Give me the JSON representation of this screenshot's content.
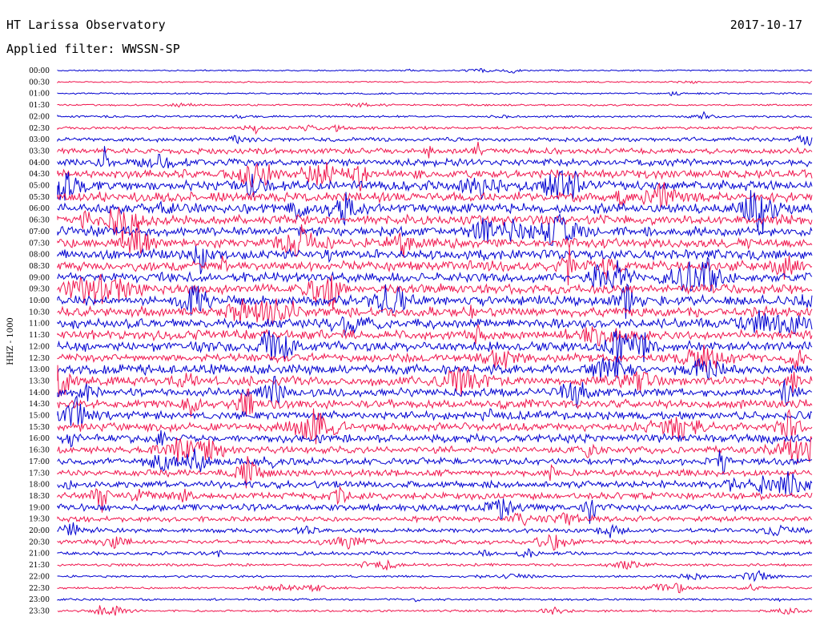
{
  "header": {
    "station": "HT Larissa Observatory",
    "date": "2017-10-17",
    "filter": "Applied filter: WWSSN-SP"
  },
  "chart_data": {
    "type": "line",
    "ylabel": "HHZ - 1000",
    "row_labels": [
      "00:00",
      "00:30",
      "01:00",
      "01:30",
      "02:00",
      "02:30",
      "03:00",
      "03:30",
      "04:00",
      "04:30",
      "05:00",
      "05:30",
      "06:00",
      "06:30",
      "07:00",
      "07:30",
      "08:00",
      "08:30",
      "09:00",
      "09:30",
      "10:00",
      "10:30",
      "11:00",
      "11:30",
      "12:00",
      "12:30",
      "13:00",
      "13:30",
      "14:00",
      "14:30",
      "15:00",
      "15:30",
      "16:00",
      "16:30",
      "17:00",
      "17:30",
      "18:00",
      "18:30",
      "19:00",
      "19:30",
      "20:00",
      "20:30",
      "21:00",
      "21:30",
      "22:00",
      "22:30",
      "23:00",
      "23:30"
    ],
    "colors": [
      "#0000d0",
      "#f0164e"
    ],
    "noise_amplitude": [
      1,
      1,
      1.2,
      1.3,
      1.5,
      2,
      3,
      4,
      5,
      6,
      7,
      7,
      7,
      7,
      7,
      7,
      7,
      7,
      7,
      7,
      7,
      7,
      7,
      7,
      7,
      6,
      7,
      7,
      6,
      6,
      6,
      6,
      6,
      5,
      5,
      5,
      5,
      5,
      5,
      4,
      3,
      3,
      2.5,
      2,
      1.5,
      1.5,
      1.5,
      1.5
    ]
  }
}
